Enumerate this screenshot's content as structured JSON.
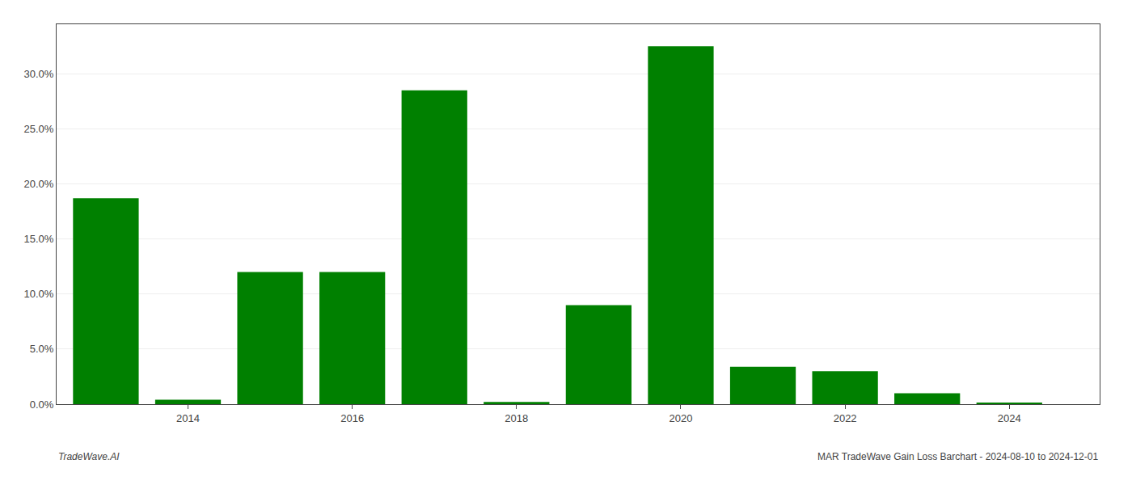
{
  "chart_data": {
    "type": "bar",
    "x": [
      2013,
      2014,
      2015,
      2016,
      2017,
      2018,
      2019,
      2020,
      2021,
      2022,
      2023,
      2024
    ],
    "values": [
      0.187,
      0.004,
      0.12,
      0.12,
      0.285,
      0.002,
      0.09,
      0.325,
      0.034,
      0.03,
      0.01,
      0.001
    ],
    "color": "#008000",
    "xlim": [
      2012.4,
      2025.1
    ],
    "xticks": [
      2014,
      2016,
      2018,
      2020,
      2022,
      2024
    ],
    "ylim": [
      0,
      0.345
    ],
    "yticks": [
      {
        "value": 0.0,
        "label": "0.0%"
      },
      {
        "value": 0.05,
        "label": "5.0%"
      },
      {
        "value": 0.1,
        "label": "10.0%"
      },
      {
        "value": 0.15,
        "label": "15.0%"
      },
      {
        "value": 0.2,
        "label": "20.0%"
      },
      {
        "value": 0.25,
        "label": "25.0%"
      },
      {
        "value": 0.3,
        "label": "30.0%"
      }
    ],
    "grid": true,
    "annotations": [
      "TradeWave.AI",
      "MAR TradeWave Gain Loss Barchart - 2024-08-10 to 2024-12-01"
    ]
  }
}
